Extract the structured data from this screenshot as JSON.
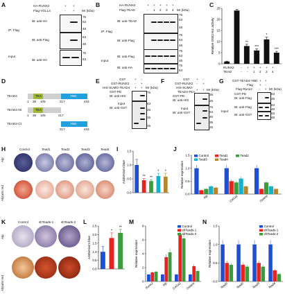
{
  "panels": {
    "A": {
      "letter": "A",
      "rows": [
        "HA-RUNX2",
        "Flag-VGLL4"
      ],
      "signs": [
        [
          "+",
          "+"
        ],
        [
          "-",
          "+"
        ]
      ],
      "blots": [
        {
          "left": "IP: Flag",
          "label": "IB: anti-HA"
        },
        {
          "left": "",
          "label": "IB: anti-Flag"
        },
        {
          "left": "Input",
          "label": "IB: anti-HA"
        }
      ],
      "mr": "Mr (kDa)",
      "markers": [
        "75",
        "63",
        "48",
        "63",
        "48",
        "75",
        "63"
      ]
    },
    "B": {
      "letter": "B",
      "rows": [
        "HA-RUNX2",
        "Flag-TEAD"
      ],
      "signs": [
        [
          "+",
          "+",
          "+",
          "+",
          "+"
        ],
        [
          "-",
          "1",
          "2",
          "3",
          "4"
        ]
      ],
      "blots": [
        {
          "left": "IP: Flag",
          "label": "IB: anti-TEAD"
        },
        {
          "left": "",
          "label": "IB: anti-Flag"
        },
        {
          "left": "Input",
          "label": "IB: anti-HA"
        }
      ],
      "mr": "Mr (kDa)",
      "markers": [
        "75",
        "63",
        "48",
        "75",
        "63",
        "48",
        "75",
        "63",
        "48",
        "75",
        "63"
      ]
    },
    "C": {
      "letter": "C",
      "ylabel": "Relative OSE2-luc activity",
      "rows": [
        "RUNX2",
        "TEAD"
      ],
      "signs": [
        [
          "-",
          "+",
          "+",
          "+",
          "+",
          "+"
        ],
        [
          "-",
          "-",
          "1",
          "2",
          "3",
          "4"
        ]
      ]
    },
    "D": {
      "letter": "D",
      "constructs": [
        "TEAD4",
        "TEAD4-Nt",
        "TEAD4-Ct"
      ],
      "domains": [
        "TEA",
        "YBD"
      ],
      "ticks1": [
        "1",
        "38",
        "105",
        "217",
        "434"
      ],
      "ticks2": [
        "1",
        "38",
        "105",
        "217"
      ],
      "ticks3": [
        "217",
        "434"
      ]
    },
    "E": {
      "letter": "E",
      "rows": [
        "GST",
        "GST-RUNX2",
        "HIS-SUMO-TEAD4"
      ],
      "signs": [
        [
          "+",
          "-"
        ],
        [
          "-",
          "+"
        ],
        [
          "+",
          "+"
        ]
      ],
      "mr": "Mr (kDa)",
      "labels": [
        "GST-PD",
        "IB: anti-HIS",
        "Input",
        "IB: anti-GST"
      ],
      "markers": [
        "75",
        "63",
        "48",
        "35",
        "25"
      ]
    },
    "F": {
      "letter": "F",
      "rows": [
        "GST",
        "GST-RUNX2",
        "HIS-SUMO-TEAD4-TEA"
      ],
      "signs": [
        [
          "+",
          "-"
        ],
        [
          "-",
          "+"
        ],
        [
          "+",
          "+"
        ]
      ],
      "mr": "Mr (kDa)",
      "labels": [
        "GST-PD",
        "IB: anti-HIS",
        "Input",
        "IB: anti-GST"
      ],
      "markers": [
        "35",
        "25",
        "75",
        "63",
        "48",
        "35",
        "25"
      ]
    },
    "G": {
      "letter": "G",
      "rows": [
        "GST-TEAD4-YBD",
        "Flag",
        "Flag-Runx2"
      ],
      "signs": [
        [
          "+",
          "+"
        ],
        [
          "+",
          "-"
        ],
        [
          "-",
          "+"
        ]
      ],
      "mr": "Mr (kDa)",
      "labels": [
        "GST-PD",
        "IB: anti-Flag",
        "IB: anti-Flag",
        "IB: anti-GST"
      ],
      "input": "Input",
      "markers": [
        "63",
        "48",
        "63",
        "48",
        "63",
        "48"
      ]
    },
    "H": {
      "letter": "H",
      "cols": [
        "Control",
        "Tead1",
        "Tead2",
        "Tead3",
        "Tead4"
      ],
      "rows": [
        "Alp",
        "Alizarin red"
      ]
    },
    "I": {
      "letter": "I",
      "ylabel": "A405/Alarm blue"
    },
    "J": {
      "letter": "J",
      "ylabel": "Relative expression"
    },
    "K": {
      "letter": "K",
      "cols": [
        "Control",
        "shTeads-1",
        "shTeads-2"
      ],
      "rows": [
        "Alp",
        "Alizarin red"
      ]
    },
    "L": {
      "letter": "L",
      "ylabel": "A405/Alarm blue"
    },
    "M": {
      "letter": "M",
      "ylabel": "Relative expression"
    },
    "N": {
      "letter": "N",
      "ylabel": "Relative expression"
    }
  },
  "colors": {
    "control": "#1f4fd1",
    "tead1": "#e8231f",
    "tead2": "#3d9a3d",
    "tead3": "#17b0c9",
    "tead4": "#b8862c",
    "sh1": "#e8231f",
    "sh2": "#3d9a3d",
    "black": "#111111",
    "alp": "#3a3f7a",
    "aliz": "#c8452c"
  },
  "chart_data": [
    {
      "panel": "C",
      "type": "bar",
      "title": "",
      "ylabel": "Relative OSE2-luc activity",
      "ylim": [
        0,
        25
      ],
      "yticks": [
        "0",
        "5",
        "10",
        "15",
        "20",
        "25"
      ],
      "categories": [
        "-/-",
        "RUNX2",
        "RUNX2+TEAD1",
        "RUNX2+TEAD2",
        "RUNX2+TEAD3",
        "RUNX2+TEAD4"
      ],
      "values": [
        1,
        24,
        8,
        6,
        11,
        5
      ],
      "errors": [
        0.2,
        0.5,
        0.8,
        0.7,
        1.0,
        0.6
      ],
      "annotations": [
        "",
        "",
        "**",
        "***",
        "*",
        "***"
      ]
    },
    {
      "panel": "I",
      "type": "bar",
      "ylabel": "A405/Alarm blue",
      "ylim": [
        0,
        1.5
      ],
      "yticks": [
        "0.0",
        "0.5",
        "1.0",
        "1.5"
      ],
      "categories": [
        "Control",
        "Tead1",
        "Tead2",
        "Tead3",
        "Tead4"
      ],
      "values": [
        1.0,
        0.45,
        0.42,
        0.6,
        0.58
      ],
      "errors": [
        0.2,
        0.06,
        0.05,
        0.1,
        0.12
      ],
      "annotations": [
        "",
        "**",
        "**",
        "*",
        "*"
      ]
    },
    {
      "panel": "J",
      "type": "bar",
      "ylabel": "Relative expression",
      "ylim": [
        0,
        1.5
      ],
      "yticks": [
        "0.0",
        "0.5",
        "1.0",
        "1.5"
      ],
      "categories": [
        "Alp",
        "Col1a1",
        "Osterix"
      ],
      "series": [
        {
          "name": "Control",
          "values": [
            1.0,
            1.0,
            1.0
          ]
        },
        {
          "name": "Tead1",
          "values": [
            0.15,
            0.5,
            0.2
          ]
        },
        {
          "name": "Tead2",
          "values": [
            0.2,
            0.45,
            0.45
          ]
        },
        {
          "name": "Tead3",
          "values": [
            0.3,
            0.6,
            0.3
          ]
        },
        {
          "name": "Tead4",
          "values": [
            0.25,
            0.3,
            0.2
          ]
        }
      ],
      "legend": "top"
    },
    {
      "panel": "L",
      "type": "bar",
      "ylabel": "A405/Alarm blue",
      "ylim": [
        0,
        2.5
      ],
      "yticks": [
        "0.0",
        "0.5",
        "1.0",
        "1.5",
        "2.0",
        "2.5"
      ],
      "categories": [
        "Control",
        "shTeads-1",
        "shTeads-2"
      ],
      "values": [
        1.0,
        1.8,
        2.1
      ],
      "errors": [
        0.3,
        0.3,
        0.2
      ],
      "annotations": [
        "",
        "*",
        "**"
      ]
    },
    {
      "panel": "M",
      "type": "bar",
      "ylabel": "Relative expression",
      "ylim": [
        0,
        8
      ],
      "yticks": [
        "0",
        "2",
        "4",
        "6",
        "8"
      ],
      "categories": [
        "Runx2",
        "Alp",
        "Col1a1",
        "Osterix"
      ],
      "series": [
        {
          "name": "Control",
          "values": [
            1.0,
            1.0,
            1.0,
            1.0
          ]
        },
        {
          "name": "shTeads-1",
          "values": [
            1.3,
            3.5,
            6.8,
            2.2
          ]
        },
        {
          "name": "shTeads-2",
          "values": [
            1.4,
            4.2,
            6.2,
            1.5
          ]
        }
      ]
    },
    {
      "panel": "N",
      "type": "bar",
      "ylabel": "Relative expression",
      "ylim": [
        0,
        1.5
      ],
      "yticks": [
        "0.0",
        "0.5",
        "1.0",
        "1.5"
      ],
      "categories": [
        "Tead1",
        "Tead2",
        "Tead3",
        "Tead4"
      ],
      "series": [
        {
          "name": "Control",
          "values": [
            1.0,
            1.0,
            1.0,
            1.0
          ]
        },
        {
          "name": "shTeads-1",
          "values": [
            0.5,
            0.45,
            0.5,
            0.3
          ]
        },
        {
          "name": "shTeads-2",
          "values": [
            0.45,
            0.4,
            0.4,
            0.2
          ]
        }
      ],
      "legend": "top-right"
    }
  ]
}
